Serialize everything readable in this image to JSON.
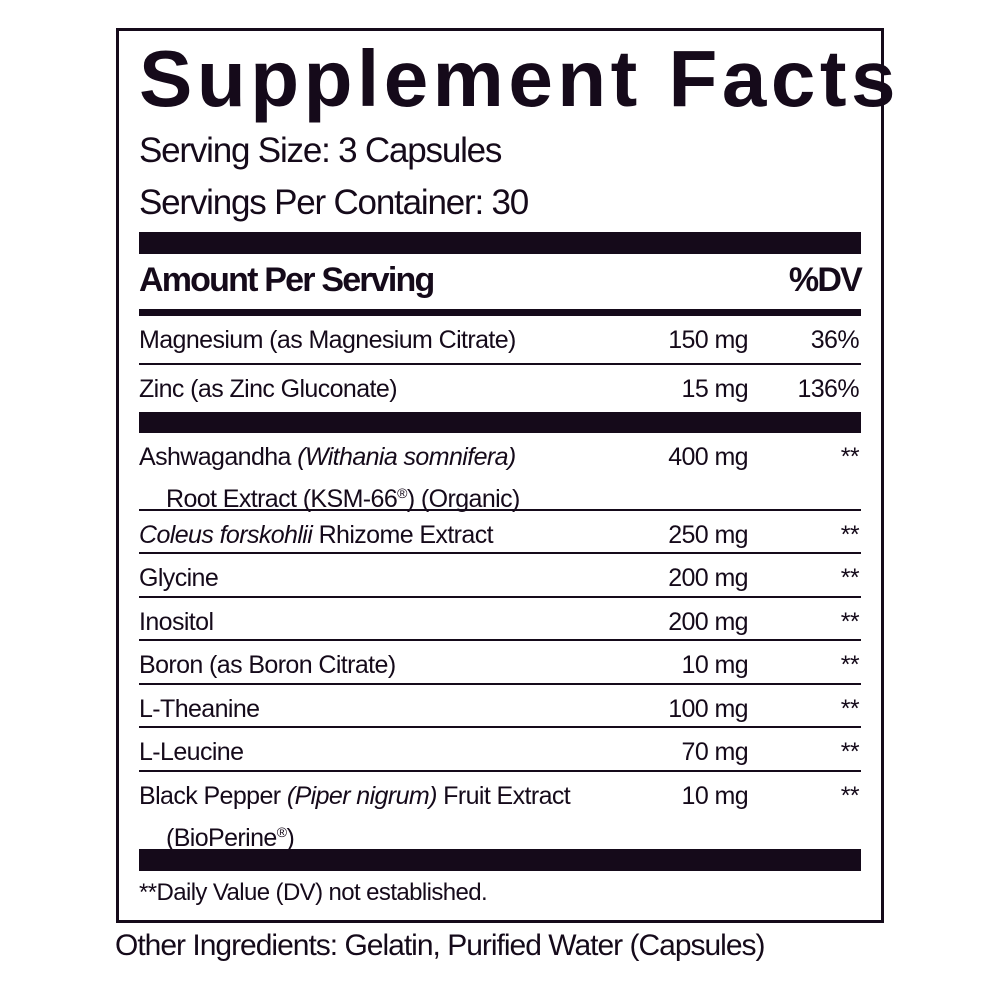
{
  "title": "Supplement Facts",
  "serving_size": "Serving Size: 3 Capsules",
  "servings_per_container": "Servings Per Container: 30",
  "header": {
    "amount": "Amount Per Serving",
    "dv": "%DV"
  },
  "vitamins": [
    {
      "name": "Magnesium (as Magnesium Citrate)",
      "amount": "150 mg",
      "dv": "36%"
    },
    {
      "name": "Zinc (as Zinc Gluconate)",
      "amount": "15 mg",
      "dv": "136%"
    }
  ],
  "other_nutrients": [
    {
      "name_a": "Ashwagandha ",
      "name_italic": "(Withania somnifera)",
      "name_line2": "Root Extract (KSM-66",
      "reg": "®",
      "name_line2_end": ") (Organic)",
      "amount": "400 mg",
      "dv": "**"
    },
    {
      "name_italic": "Coleus forskohlii",
      "name_b": " Rhizome Extract",
      "amount": "250 mg",
      "dv": "**"
    },
    {
      "name": "Glycine",
      "amount": "200 mg",
      "dv": "**"
    },
    {
      "name": "Inositol",
      "amount": "200 mg",
      "dv": "**"
    },
    {
      "name": "Boron (as Boron Citrate)",
      "amount": "10 mg",
      "dv": "**"
    },
    {
      "name": "L-Theanine",
      "amount": "100 mg",
      "dv": "**"
    },
    {
      "name": "L-Leucine",
      "amount": "70 mg",
      "dv": "**"
    },
    {
      "name_a": "Black Pepper ",
      "name_italic": "(Piper nigrum)",
      "name_b": " Fruit Extract",
      "name_line2": "(BioPerine",
      "reg": "®",
      "name_line2_end": ")",
      "amount": "10 mg",
      "dv": "**"
    }
  ],
  "footnote": "**Daily Value (DV) not established.",
  "other_ingredients": "Other Ingredients: Gelatin, Purified Water (Capsules)",
  "colors": {
    "ink": "#150a1a",
    "background": "#ffffff"
  }
}
